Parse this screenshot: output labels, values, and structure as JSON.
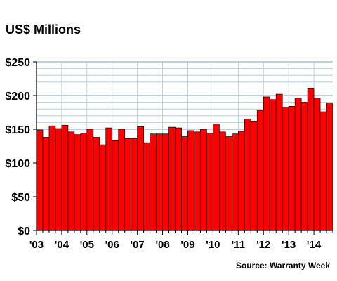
{
  "chart_data": {
    "type": "bar",
    "title": "US$ Millions",
    "source": "Source: Warranty Week",
    "xlabel": "",
    "ylabel": "",
    "ylim": [
      0,
      250
    ],
    "y_ticks": [
      0,
      50,
      100,
      150,
      200,
      250
    ],
    "y_tick_labels": [
      "$0",
      "$50",
      "$100",
      "$150",
      "$200",
      "$250"
    ],
    "x_tick_labels": [
      "'03",
      "'04",
      "'05",
      "'06",
      "'07",
      "'08",
      "'09",
      "'10",
      "'11",
      "'12",
      "'13",
      "'14"
    ],
    "bar_color": "#ff0000",
    "grid": true,
    "categories": [
      "2003 Q1",
      "2003 Q2",
      "2003 Q3",
      "2003 Q4",
      "2004 Q1",
      "2004 Q2",
      "2004 Q3",
      "2004 Q4",
      "2005 Q1",
      "2005 Q2",
      "2005 Q3",
      "2005 Q4",
      "2006 Q1",
      "2006 Q2",
      "2006 Q3",
      "2006 Q4",
      "2007 Q1",
      "2007 Q2",
      "2007 Q3",
      "2007 Q4",
      "2008 Q1",
      "2008 Q2",
      "2008 Q3",
      "2008 Q4",
      "2009 Q1",
      "2009 Q2",
      "2009 Q3",
      "2009 Q4",
      "2010 Q1",
      "2010 Q2",
      "2010 Q3",
      "2010 Q4",
      "2011 Q1",
      "2011 Q2",
      "2011 Q3",
      "2011 Q4",
      "2012 Q1",
      "2012 Q2",
      "2012 Q3",
      "2012 Q4",
      "2013 Q1",
      "2013 Q2",
      "2013 Q3",
      "2013 Q4",
      "2014 Q1",
      "2014 Q2",
      "2014 Q3"
    ],
    "values": [
      149,
      138,
      155,
      151,
      156,
      146,
      142,
      144,
      150,
      138,
      127,
      152,
      134,
      150,
      136,
      136,
      154,
      130,
      143,
      143,
      143,
      153,
      152,
      139,
      148,
      146,
      150,
      144,
      158,
      146,
      139,
      143,
      147,
      165,
      162,
      178,
      198,
      194,
      202,
      183,
      184,
      196,
      190,
      211,
      196,
      176,
      189
    ]
  }
}
